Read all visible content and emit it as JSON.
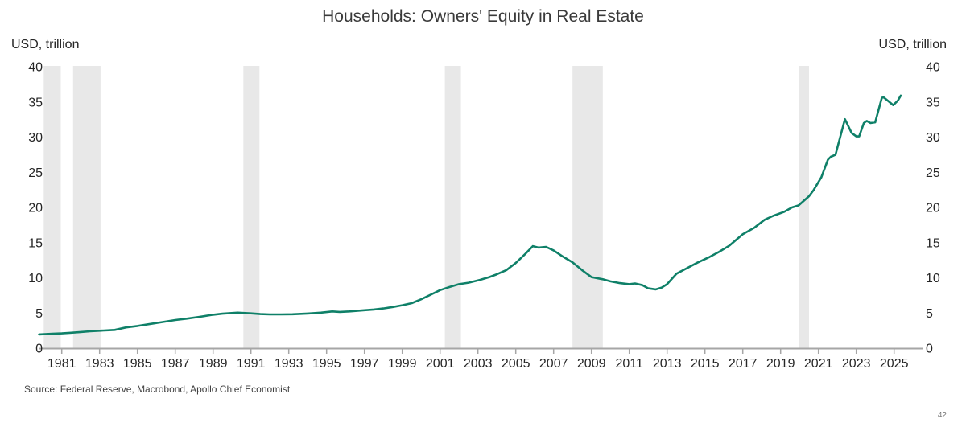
{
  "page": {
    "title": "Households: Owners' Equity in Real Estate",
    "unit_label_left": "USD, trillion",
    "unit_label_right": "USD, trillion",
    "source": "Source: Federal Reserve, Macrobond, Apollo Chief Economist",
    "page_number": "42"
  },
  "chart_data": {
    "type": "line",
    "title": "Households: Owners' Equity in Real Estate",
    "ylabel": "USD, trillion",
    "xlabel": "",
    "ylim": [
      0,
      40
    ],
    "xlim": [
      1979.78,
      2026.5
    ],
    "grid": false,
    "legend": "none",
    "y_ticks": [
      0,
      5,
      10,
      15,
      20,
      25,
      30,
      35,
      40
    ],
    "x_tick_years": [
      1981,
      1983,
      1985,
      1987,
      1989,
      1991,
      1993,
      1995,
      1997,
      1999,
      2001,
      2003,
      2005,
      2007,
      2009,
      2011,
      2013,
      2015,
      2017,
      2019,
      2021,
      2023,
      2025
    ],
    "line_color": "#0f8068",
    "recession_band_color": "#e8e8e8",
    "axis_color": "#a6a6a6",
    "tick_label_color": "#262626",
    "recession_bands": [
      [
        1980.05,
        1980.95
      ],
      [
        1981.6,
        1983.05
      ],
      [
        1990.6,
        1991.45
      ],
      [
        2001.25,
        2002.1
      ],
      [
        2008.0,
        2009.6
      ],
      [
        2019.95,
        2020.5
      ]
    ],
    "series": [
      {
        "name": "Owners' equity in real estate (USD trillion)",
        "points": [
          [
            1979.8,
            1.95
          ],
          [
            1980.5,
            2.05
          ],
          [
            1981.0,
            2.1
          ],
          [
            1981.5,
            2.2
          ],
          [
            1982.0,
            2.3
          ],
          [
            1982.5,
            2.4
          ],
          [
            1983.0,
            2.48
          ],
          [
            1983.5,
            2.55
          ],
          [
            1983.8,
            2.6
          ],
          [
            1984.4,
            2.95
          ],
          [
            1985.0,
            3.15
          ],
          [
            1985.7,
            3.45
          ],
          [
            1986.3,
            3.7
          ],
          [
            1987.0,
            4.0
          ],
          [
            1987.6,
            4.2
          ],
          [
            1988.25,
            4.45
          ],
          [
            1989.0,
            4.75
          ],
          [
            1989.5,
            4.9
          ],
          [
            1990.3,
            5.05
          ],
          [
            1991.0,
            4.95
          ],
          [
            1991.5,
            4.85
          ],
          [
            1992.0,
            4.8
          ],
          [
            1992.6,
            4.8
          ],
          [
            1993.2,
            4.82
          ],
          [
            1994.0,
            4.92
          ],
          [
            1994.7,
            5.05
          ],
          [
            1995.3,
            5.22
          ],
          [
            1995.7,
            5.15
          ],
          [
            1996.2,
            5.22
          ],
          [
            1997.0,
            5.4
          ],
          [
            1997.5,
            5.5
          ],
          [
            1998.0,
            5.65
          ],
          [
            1998.5,
            5.85
          ],
          [
            1999.0,
            6.1
          ],
          [
            1999.5,
            6.4
          ],
          [
            2000.0,
            6.95
          ],
          [
            2000.5,
            7.6
          ],
          [
            2001.0,
            8.25
          ],
          [
            2001.5,
            8.7
          ],
          [
            2002.0,
            9.1
          ],
          [
            2002.5,
            9.3
          ],
          [
            2003.1,
            9.7
          ],
          [
            2003.6,
            10.1
          ],
          [
            2004.0,
            10.5
          ],
          [
            2004.5,
            11.1
          ],
          [
            2005.0,
            12.1
          ],
          [
            2005.5,
            13.4
          ],
          [
            2005.9,
            14.5
          ],
          [
            2006.2,
            14.3
          ],
          [
            2006.6,
            14.4
          ],
          [
            2007.0,
            13.9
          ],
          [
            2007.5,
            13.0
          ],
          [
            2008.0,
            12.2
          ],
          [
            2008.5,
            11.1
          ],
          [
            2009.0,
            10.1
          ],
          [
            2009.6,
            9.8
          ],
          [
            2010.0,
            9.5
          ],
          [
            2010.5,
            9.25
          ],
          [
            2011.0,
            9.1
          ],
          [
            2011.3,
            9.2
          ],
          [
            2011.7,
            8.95
          ],
          [
            2012.0,
            8.5
          ],
          [
            2012.4,
            8.35
          ],
          [
            2012.7,
            8.6
          ],
          [
            2013.0,
            9.1
          ],
          [
            2013.5,
            10.6
          ],
          [
            2014.0,
            11.3
          ],
          [
            2014.6,
            12.15
          ],
          [
            2015.2,
            12.9
          ],
          [
            2015.75,
            13.7
          ],
          [
            2016.3,
            14.6
          ],
          [
            2017.0,
            16.2
          ],
          [
            2017.6,
            17.1
          ],
          [
            2018.15,
            18.25
          ],
          [
            2018.6,
            18.8
          ],
          [
            2019.2,
            19.4
          ],
          [
            2019.6,
            20.0
          ],
          [
            2019.95,
            20.3
          ],
          [
            2020.5,
            21.6
          ],
          [
            2020.75,
            22.5
          ],
          [
            2021.15,
            24.3
          ],
          [
            2021.5,
            26.8
          ],
          [
            2021.65,
            27.2
          ],
          [
            2021.9,
            27.5
          ],
          [
            2022.4,
            32.55
          ],
          [
            2022.75,
            30.6
          ],
          [
            2023.0,
            30.1
          ],
          [
            2023.15,
            30.1
          ],
          [
            2023.4,
            32.0
          ],
          [
            2023.55,
            32.3
          ],
          [
            2023.75,
            32.0
          ],
          [
            2024.0,
            32.1
          ],
          [
            2024.35,
            35.6
          ],
          [
            2024.45,
            35.65
          ],
          [
            2024.7,
            35.1
          ],
          [
            2024.95,
            34.55
          ],
          [
            2025.2,
            35.2
          ],
          [
            2025.35,
            35.9
          ]
        ]
      }
    ]
  }
}
